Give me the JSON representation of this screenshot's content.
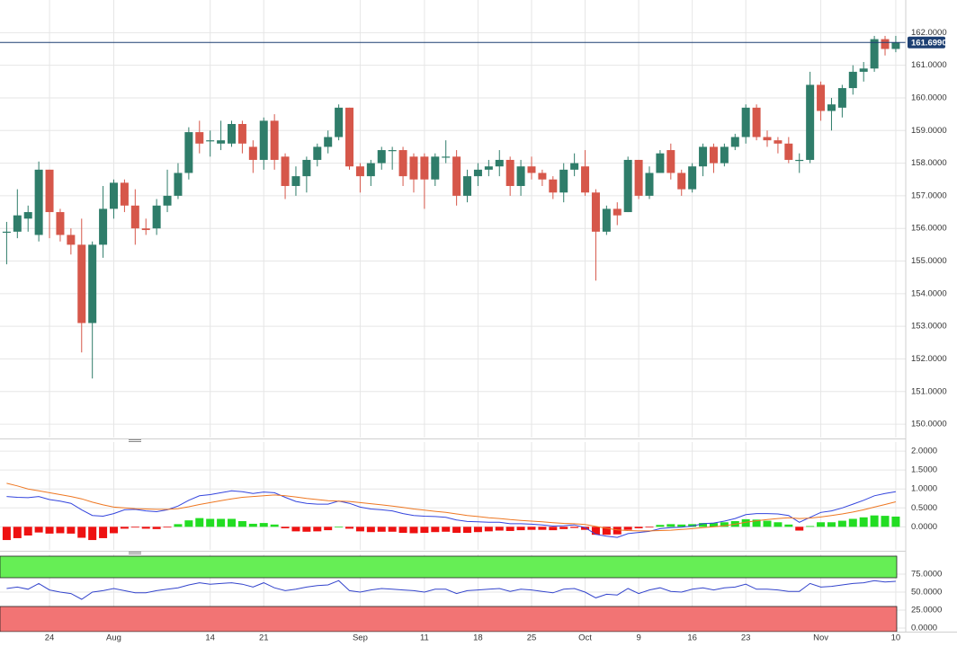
{
  "chart_data": [
    {
      "type": "candlestick",
      "up_color": "#2f7d6a",
      "down_color": "#d6574a",
      "categories": [
        null,
        null,
        null,
        null,
        "24",
        null,
        null,
        null,
        null,
        null,
        "Aug",
        null,
        null,
        null,
        null,
        null,
        null,
        null,
        null,
        "14",
        null,
        null,
        null,
        null,
        "21",
        null,
        null,
        null,
        null,
        null,
        null,
        null,
        null,
        "Sep",
        null,
        null,
        null,
        null,
        null,
        "11",
        null,
        null,
        null,
        null,
        "18",
        null,
        null,
        null,
        null,
        "25",
        null,
        null,
        null,
        null,
        "Oct",
        null,
        null,
        null,
        null,
        "9",
        null,
        null,
        null,
        null,
        "16",
        null,
        null,
        null,
        null,
        "23",
        null,
        null,
        null,
        null,
        null,
        null,
        "Nov",
        null,
        null,
        null,
        null,
        null,
        null,
        "10"
      ],
      "open": [
        155.9,
        155.9,
        156.3,
        155.8,
        157.8,
        156.5,
        155.8,
        155.5,
        153.1,
        155.5,
        156.6,
        157.4,
        156.7,
        156.0,
        156.0,
        156.7,
        157.0,
        157.7,
        158.95,
        158.7,
        158.6,
        158.6,
        159.2,
        158.5,
        158.1,
        159.3,
        158.2,
        157.3,
        157.6,
        158.1,
        158.5,
        158.8,
        159.7,
        157.9,
        157.6,
        158.0,
        158.4,
        158.4,
        158.2,
        158.2,
        157.5,
        158.2,
        158.2,
        157.0,
        157.6,
        157.8,
        157.9,
        158.1,
        157.3,
        157.9,
        157.7,
        157.5,
        157.1,
        157.8,
        157.9,
        157.1,
        155.9,
        156.6,
        156.5,
        158.1,
        157.0,
        157.7,
        158.4,
        157.7,
        157.2,
        157.9,
        158.5,
        158.0,
        158.5,
        158.8,
        159.7,
        158.8,
        158.7,
        158.6,
        158.1,
        158.1,
        160.4,
        159.6,
        159.7,
        160.3,
        160.8,
        160.9,
        161.8,
        161.5
      ],
      "high": [
        156.2,
        157.2,
        156.7,
        158.05,
        157.8,
        156.6,
        156.0,
        156.3,
        155.6,
        157.3,
        157.5,
        157.5,
        157.2,
        156.3,
        156.9,
        157.8,
        158.0,
        159.1,
        159.3,
        159.0,
        159.3,
        159.3,
        159.3,
        158.7,
        159.4,
        159.5,
        158.3,
        157.9,
        158.2,
        158.6,
        159.0,
        159.8,
        159.7,
        158.0,
        158.1,
        158.5,
        158.5,
        158.5,
        158.3,
        158.3,
        158.3,
        158.7,
        158.4,
        157.8,
        158.0,
        158.1,
        158.4,
        158.2,
        158.1,
        158.2,
        157.8,
        157.6,
        158.0,
        158.3,
        158.4,
        157.2,
        156.7,
        156.8,
        158.2,
        158.1,
        157.9,
        158.4,
        158.6,
        157.8,
        158.0,
        158.6,
        158.6,
        158.6,
        158.9,
        159.8,
        159.8,
        159.0,
        158.8,
        158.8,
        158.3,
        160.8,
        160.5,
        160.0,
        160.4,
        161.0,
        161.1,
        161.9,
        161.9,
        161.9
      ],
      "low": [
        154.9,
        155.7,
        155.9,
        155.6,
        155.7,
        155.6,
        155.2,
        152.2,
        151.4,
        155.1,
        156.3,
        156.5,
        155.5,
        155.8,
        155.8,
        156.5,
        156.9,
        157.5,
        158.3,
        158.2,
        158.4,
        158.5,
        158.3,
        157.7,
        157.8,
        157.8,
        156.9,
        157.0,
        157.1,
        157.9,
        158.3,
        158.7,
        157.8,
        157.1,
        157.3,
        157.8,
        157.8,
        157.3,
        157.1,
        156.6,
        157.3,
        158.0,
        156.7,
        156.8,
        157.3,
        157.6,
        157.6,
        157.0,
        157.0,
        157.5,
        157.3,
        156.9,
        156.8,
        157.6,
        157.0,
        154.4,
        155.8,
        156.1,
        156.5,
        156.9,
        156.9,
        157.7,
        157.5,
        157.0,
        157.1,
        157.6,
        157.7,
        157.9,
        158.4,
        158.6,
        158.7,
        158.5,
        158.3,
        158.0,
        157.7,
        158.0,
        159.3,
        159.0,
        159.4,
        160.1,
        160.5,
        160.8,
        161.3,
        161.4
      ],
      "close": [
        155.9,
        156.4,
        156.5,
        157.8,
        156.5,
        155.8,
        155.5,
        153.1,
        155.5,
        156.6,
        157.4,
        156.7,
        156.0,
        155.95,
        156.7,
        157.0,
        157.7,
        158.95,
        158.6,
        158.7,
        158.7,
        159.2,
        158.6,
        158.1,
        159.3,
        158.1,
        157.3,
        157.6,
        158.1,
        158.5,
        158.8,
        159.7,
        157.9,
        157.6,
        158.0,
        158.4,
        158.4,
        157.6,
        157.5,
        157.5,
        158.2,
        158.2,
        157.0,
        157.6,
        157.8,
        157.9,
        158.1,
        157.3,
        157.9,
        157.7,
        157.5,
        157.1,
        157.8,
        158.0,
        157.1,
        155.9,
        156.6,
        156.4,
        158.1,
        157.0,
        157.7,
        158.3,
        157.7,
        157.2,
        157.9,
        158.5,
        158.0,
        158.5,
        158.8,
        159.7,
        158.8,
        158.7,
        158.6,
        158.1,
        158.1,
        160.4,
        159.6,
        159.8,
        160.3,
        160.8,
        160.9,
        161.8,
        161.5,
        161.7
      ],
      "last_price": {
        "value": 161.699,
        "label": "161.6990"
      },
      "last_price_color": "#1d3f72",
      "ylim": [
        149.59,
        163
      ],
      "yticks": [
        {
          "value": 150,
          "label": "150.0000"
        },
        {
          "value": 151,
          "label": "151.0000"
        },
        {
          "value": 152,
          "label": "152.0000"
        },
        {
          "value": 153,
          "label": "153.0000"
        },
        {
          "value": 154,
          "label": "154.0000"
        },
        {
          "value": 155,
          "label": "155.0000"
        },
        {
          "value": 156,
          "label": "156.0000"
        },
        {
          "value": 157,
          "label": "157.0000"
        },
        {
          "value": 158,
          "label": "158.0000"
        },
        {
          "value": 159,
          "label": "159.0000"
        },
        {
          "value": 160,
          "label": "160.0000"
        },
        {
          "value": 161,
          "label": "161.0000"
        },
        {
          "value": 162,
          "label": "162.0000"
        }
      ],
      "grid": true
    },
    {
      "type": "macd",
      "up_color": "#22dd22",
      "down_color": "#ee1111",
      "histogram": [
        -0.35,
        -0.3,
        -0.23,
        -0.15,
        -0.18,
        -0.17,
        -0.18,
        -0.29,
        -0.35,
        -0.3,
        -0.17,
        -0.05,
        -0.02,
        -0.05,
        -0.06,
        -0.01,
        0.07,
        0.17,
        0.23,
        0.21,
        0.21,
        0.21,
        0.15,
        0.08,
        0.1,
        0.06,
        -0.04,
        -0.12,
        -0.13,
        -0.12,
        -0.09,
        0.0,
        -0.05,
        -0.12,
        -0.14,
        -0.13,
        -0.13,
        -0.16,
        -0.17,
        -0.16,
        -0.14,
        -0.13,
        -0.16,
        -0.16,
        -0.14,
        -0.12,
        -0.1,
        -0.11,
        -0.09,
        -0.08,
        -0.08,
        -0.09,
        -0.06,
        -0.03,
        -0.08,
        -0.21,
        -0.21,
        -0.2,
        -0.08,
        -0.04,
        -0.01,
        0.05,
        0.07,
        0.06,
        0.07,
        0.1,
        0.1,
        0.12,
        0.15,
        0.2,
        0.19,
        0.16,
        0.12,
        0.06,
        -0.1,
        0.02,
        0.12,
        0.12,
        0.16,
        0.21,
        0.25,
        0.3,
        0.29,
        0.27
      ],
      "series": [
        {
          "color": "#3344dd",
          "values": [
            0.8,
            0.78,
            0.77,
            0.8,
            0.72,
            0.68,
            0.62,
            0.45,
            0.3,
            0.28,
            0.35,
            0.45,
            0.46,
            0.42,
            0.4,
            0.45,
            0.55,
            0.7,
            0.82,
            0.85,
            0.9,
            0.95,
            0.93,
            0.88,
            0.92,
            0.9,
            0.78,
            0.67,
            0.62,
            0.6,
            0.6,
            0.68,
            0.62,
            0.52,
            0.47,
            0.45,
            0.42,
            0.35,
            0.3,
            0.28,
            0.27,
            0.25,
            0.18,
            0.14,
            0.13,
            0.12,
            0.12,
            0.08,
            0.08,
            0.07,
            0.05,
            0.02,
            0.03,
            0.05,
            -0.02,
            -0.2,
            -0.25,
            -0.28,
            -0.18,
            -0.15,
            -0.12,
            -0.05,
            -0.02,
            -0.01,
            0.02,
            0.08,
            0.1,
            0.15,
            0.22,
            0.32,
            0.35,
            0.35,
            0.34,
            0.3,
            0.12,
            0.25,
            0.38,
            0.42,
            0.5,
            0.6,
            0.7,
            0.82,
            0.88,
            0.93
          ]
        },
        {
          "color": "#ee7722",
          "values": [
            1.15,
            1.08,
            1.0,
            0.95,
            0.9,
            0.85,
            0.8,
            0.74,
            0.65,
            0.58,
            0.52,
            0.5,
            0.48,
            0.47,
            0.46,
            0.46,
            0.48,
            0.53,
            0.59,
            0.64,
            0.69,
            0.74,
            0.78,
            0.8,
            0.82,
            0.84,
            0.82,
            0.79,
            0.75,
            0.72,
            0.69,
            0.68,
            0.67,
            0.64,
            0.61,
            0.58,
            0.55,
            0.51,
            0.47,
            0.44,
            0.41,
            0.38,
            0.34,
            0.3,
            0.27,
            0.24,
            0.22,
            0.19,
            0.17,
            0.15,
            0.13,
            0.11,
            0.09,
            0.08,
            0.06,
            0.01,
            -0.04,
            -0.08,
            -0.1,
            -0.11,
            -0.11,
            -0.1,
            -0.09,
            -0.07,
            -0.05,
            -0.02,
            0.0,
            0.03,
            0.07,
            0.12,
            0.16,
            0.19,
            0.22,
            0.24,
            0.22,
            0.23,
            0.26,
            0.3,
            0.34,
            0.39,
            0.45,
            0.52,
            0.59,
            0.66
          ]
        }
      ],
      "ylim": [
        -0.61,
        2.24
      ],
      "yticks": [
        {
          "value": 0,
          "label": "0.0000"
        },
        {
          "value": 0.5,
          "label": "0.5000"
        },
        {
          "value": 1,
          "label": "1.0000"
        },
        {
          "value": 1.5,
          "label": "1.5000"
        },
        {
          "value": 2,
          "label": "2.0000"
        }
      ],
      "grid": true
    },
    {
      "type": "rsi",
      "color": "#3344cc",
      "overbought": 70,
      "oversold": 30,
      "overbought_color": "#66ee55",
      "oversold_color": "#f27474",
      "values": [
        55,
        57,
        54,
        62,
        53,
        50,
        48,
        40,
        50,
        52,
        55,
        52,
        49,
        49,
        52,
        54,
        56,
        60,
        63,
        61,
        62,
        63,
        61,
        57,
        63,
        56,
        52,
        54,
        57,
        59,
        60,
        66,
        52,
        50,
        53,
        55,
        54,
        53,
        52,
        50,
        54,
        54,
        48,
        52,
        53,
        54,
        55,
        51,
        54,
        53,
        51,
        49,
        54,
        55,
        50,
        42,
        47,
        46,
        55,
        48,
        53,
        56,
        51,
        50,
        54,
        56,
        53,
        56,
        57,
        61,
        54,
        54,
        53,
        51,
        51,
        62,
        57,
        58,
        60,
        62,
        63,
        66,
        64,
        65
      ],
      "ylim": [
        0,
        100
      ],
      "yticks": [
        {
          "value": 0,
          "label": "0.0000"
        },
        {
          "value": 25,
          "label": "25.0000"
        },
        {
          "value": 50,
          "label": "50.0000"
        },
        {
          "value": 75,
          "label": "75.0000"
        }
      ],
      "grid": true
    }
  ]
}
